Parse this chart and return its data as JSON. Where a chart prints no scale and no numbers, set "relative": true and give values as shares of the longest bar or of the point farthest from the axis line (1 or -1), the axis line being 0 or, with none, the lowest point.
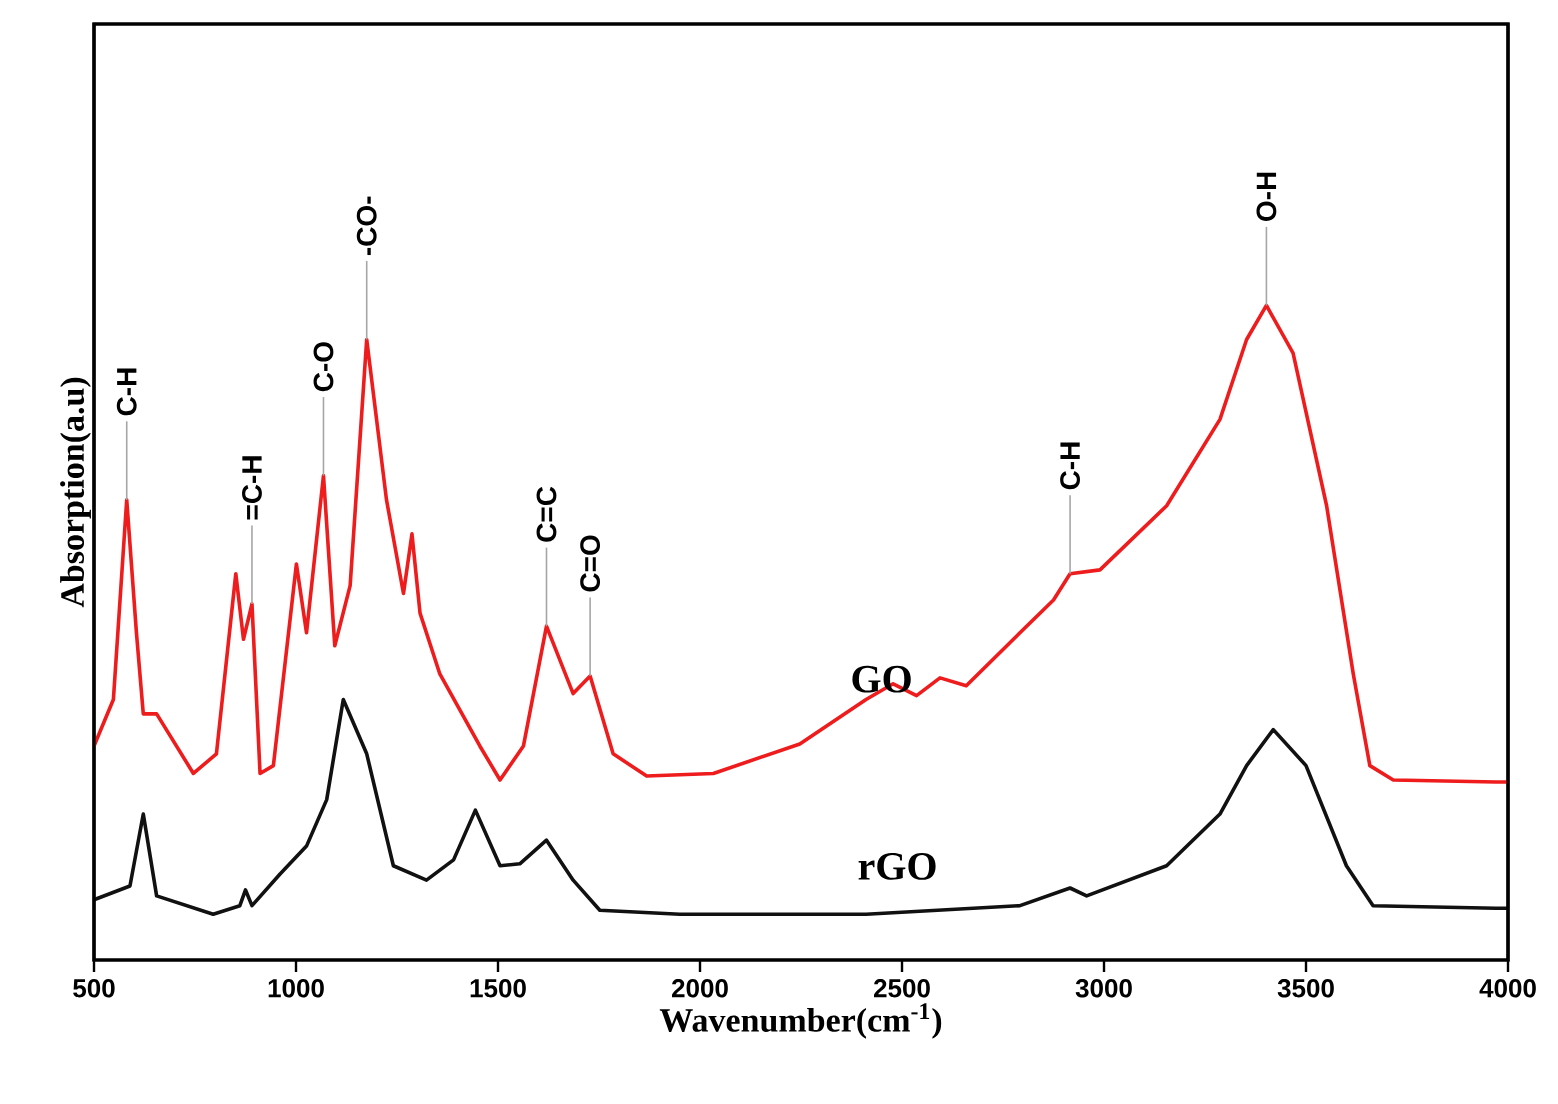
{
  "chart_data": {
    "type": "line",
    "relative": true,
    "xlabel": "Wavenumber(cm$^{-1}$)",
    "ylabel": "Absorption(a.u)",
    "xlim": [
      500,
      4000
    ],
    "xticks": [
      500,
      1000,
      1500,
      2000,
      2500,
      3000,
      3500,
      4000
    ],
    "grid": false,
    "series": [
      {
        "name": "GO",
        "color": "#ee1c1c",
        "x": [
          500,
          548,
          581,
          605,
          622,
          655,
          746,
          803,
          851,
          870,
          891,
          911,
          944,
          1001,
          1026,
          1068,
          1096,
          1134,
          1175,
          1224,
          1266,
          1287,
          1307,
          1356,
          1455,
          1505,
          1563,
          1620,
          1686,
          1728,
          1785,
          1868,
          2033,
          2247,
          2411,
          2478,
          2536,
          2594,
          2659,
          2792,
          2875,
          2916,
          2990,
          3155,
          3287,
          3353,
          3402,
          3468,
          3551,
          3617,
          3658,
          3716,
          3970,
          4000
        ],
        "values": [
          0.327,
          0.398,
          0.703,
          0.5,
          0.376,
          0.376,
          0.285,
          0.315,
          0.59,
          0.49,
          0.544,
          0.285,
          0.297,
          0.605,
          0.5,
          0.74,
          0.48,
          0.572,
          0.948,
          0.703,
          0.56,
          0.651,
          0.53,
          0.437,
          0.327,
          0.275,
          0.327,
          0.51,
          0.407,
          0.434,
          0.315,
          0.281,
          0.285,
          0.33,
          0.398,
          0.422,
          0.404,
          0.431,
          0.419,
          0.5,
          0.55,
          0.59,
          0.596,
          0.694,
          0.826,
          0.948,
          1.0,
          0.927,
          0.694,
          0.437,
          0.297,
          0.275,
          0.272,
          0.272
        ]
      },
      {
        "name": "rGO",
        "color": "#111111",
        "x": [
          500,
          589,
          622,
          655,
          795,
          861,
          875,
          891,
          960,
          1026,
          1076,
          1117,
          1175,
          1241,
          1323,
          1390,
          1444,
          1505,
          1554,
          1620,
          1686,
          1752,
          1950,
          2411,
          2792,
          2916,
          2957,
          3155,
          3287,
          3353,
          3419,
          3500,
          3600,
          3666,
          3970,
          4000
        ],
        "values": [
          0.092,
          0.113,
          0.223,
          0.098,
          0.07,
          0.083,
          0.107,
          0.083,
          0.131,
          0.174,
          0.245,
          0.398,
          0.315,
          0.144,
          0.122,
          0.153,
          0.229,
          0.144,
          0.147,
          0.183,
          0.122,
          0.076,
          0.07,
          0.07,
          0.083,
          0.11,
          0.098,
          0.144,
          0.223,
          0.297,
          0.352,
          0.297,
          0.144,
          0.083,
          0.079,
          0.079
        ]
      }
    ],
    "annotations": [
      {
        "text": "C-H",
        "x": 581,
        "y": 0.703
      },
      {
        "text": "=C-H",
        "x": 891,
        "y": 0.544
      },
      {
        "text": "C-O",
        "x": 1068,
        "y": 0.74
      },
      {
        "text": "-CO-",
        "x": 1175,
        "y": 0.948
      },
      {
        "text": "C=C",
        "x": 1620,
        "y": 0.51
      },
      {
        "text": "C=O",
        "x": 1728,
        "y": 0.434
      },
      {
        "text": "C-H",
        "x": 2916,
        "y": 0.59
      },
      {
        "text": "O-H",
        "x": 3402,
        "y": 1.0
      }
    ]
  }
}
